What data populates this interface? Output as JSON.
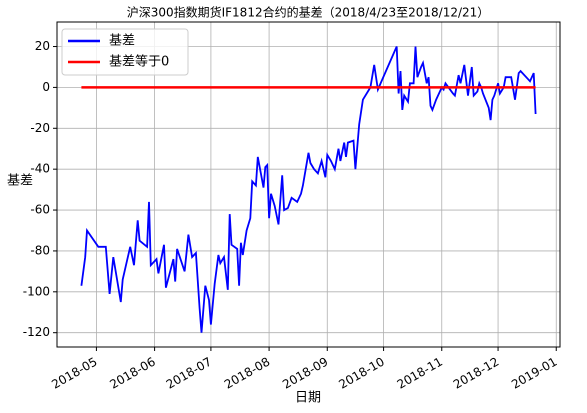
{
  "chart_data": {
    "type": "line",
    "title": "沪深300指数期货IF1812合约的基差（2018/4/23至2018/12/21）",
    "xlabel": "日期",
    "ylabel": "基差",
    "x": [
      "2018-04-23",
      "2018-04-25",
      "2018-04-26",
      "2018-05-02",
      "2018-05-06",
      "2018-05-08",
      "2018-05-10",
      "2018-05-14",
      "2018-05-15",
      "2018-05-19",
      "2018-05-21",
      "2018-05-23",
      "2018-05-24",
      "2018-05-28",
      "2018-05-29",
      "2018-05-30",
      "2018-06-02",
      "2018-06-03",
      "2018-06-06",
      "2018-06-07",
      "2018-06-11",
      "2018-06-12",
      "2018-06-13",
      "2018-06-17",
      "2018-06-19",
      "2018-06-21",
      "2018-06-23",
      "2018-06-25",
      "2018-06-26",
      "2018-06-28",
      "2018-06-30",
      "2018-07-01",
      "2018-07-03",
      "2018-07-05",
      "2018-07-06",
      "2018-07-08",
      "2018-07-10",
      "2018-07-11",
      "2018-07-12",
      "2018-07-15",
      "2018-07-16",
      "2018-07-17",
      "2018-07-18",
      "2018-07-20",
      "2018-07-22",
      "2018-07-23",
      "2018-07-25",
      "2018-07-26",
      "2018-07-29",
      "2018-07-30",
      "2018-07-31",
      "2018-08-01",
      "2018-08-02",
      "2018-08-04",
      "2018-08-06",
      "2018-08-08",
      "2018-08-09",
      "2018-08-11",
      "2018-08-13",
      "2018-08-16",
      "2018-08-18",
      "2018-08-19",
      "2018-08-22",
      "2018-08-23",
      "2018-08-25",
      "2018-08-27",
      "2018-08-29",
      "2018-08-31",
      "2018-09-01",
      "2018-09-03",
      "2018-09-05",
      "2018-09-07",
      "2018-09-08",
      "2018-09-10",
      "2018-09-11",
      "2018-09-12",
      "2018-09-15",
      "2018-09-16",
      "2018-09-18",
      "2018-09-20",
      "2018-09-24",
      "2018-09-26",
      "2018-09-28",
      "2018-10-08",
      "2018-10-09",
      "2018-10-10",
      "2018-10-11",
      "2018-10-12",
      "2018-10-14",
      "2018-10-15",
      "2018-10-17",
      "2018-10-18",
      "2018-10-19",
      "2018-10-21",
      "2018-10-22",
      "2018-10-24",
      "2018-10-25",
      "2018-10-26",
      "2018-10-27",
      "2018-10-29",
      "2018-11-01",
      "2018-11-02",
      "2018-11-03",
      "2018-11-07",
      "2018-11-08",
      "2018-11-10",
      "2018-11-11",
      "2018-11-13",
      "2018-11-15",
      "2018-11-17",
      "2018-11-18",
      "2018-11-20",
      "2018-11-21",
      "2018-11-22",
      "2018-11-23",
      "2018-11-26",
      "2018-11-27",
      "2018-11-28",
      "2018-11-29",
      "2018-12-01",
      "2018-12-02",
      "2018-12-04",
      "2018-12-05",
      "2018-12-08",
      "2018-12-10",
      "2018-12-12",
      "2018-12-13",
      "2018-12-17",
      "2018-12-18",
      "2018-12-20",
      "2018-12-21"
    ],
    "series": [
      {
        "name": "基差",
        "color": "#0000ff",
        "values": [
          -97,
          -83,
          -70,
          -78,
          -78,
          -101,
          -83,
          -105,
          -94,
          -78,
          -87,
          -65,
          -75,
          -78,
          -56,
          -87,
          -84,
          -91,
          -77,
          -98,
          -84,
          -95,
          -79,
          -90,
          -72,
          -83,
          -81,
          -108,
          -120,
          -97,
          -104,
          -116,
          -96,
          -82,
          -86,
          -83,
          -99,
          -62,
          -77,
          -79,
          -97,
          -76,
          -82,
          -70,
          -64,
          -46,
          -48,
          -34,
          -49,
          -39,
          -38,
          -64,
          -52,
          -58,
          -67,
          -43,
          -60,
          -59,
          -54,
          -56,
          -52,
          -48,
          -32,
          -37,
          -40,
          -42,
          -36,
          -44,
          -33,
          -36,
          -40,
          -30,
          -36,
          -27,
          -34,
          -27,
          -26,
          -40,
          -18,
          -6,
          0,
          11,
          -1,
          20,
          -3,
          8,
          -11,
          -4,
          -7,
          2,
          2,
          20,
          5,
          10,
          12,
          2,
          5,
          -9,
          -11,
          -6,
          0,
          -1,
          2,
          -3,
          -4,
          6,
          2,
          11,
          -4,
          10,
          -4,
          -2,
          2,
          0,
          -3,
          -10,
          -16,
          -6,
          -4,
          2,
          -3,
          0,
          5,
          5,
          -6,
          7,
          8,
          4,
          3,
          7,
          -13
        ]
      },
      {
        "name": "基差等于0",
        "color": "#ff0000",
        "x": [
          "2018-04-23",
          "2018-12-21"
        ],
        "values": [
          0,
          0
        ]
      }
    ],
    "xlim": [
      "2018-04-10",
      "2019-01-03"
    ],
    "xticks": [
      {
        "value": "2018-05-01",
        "label": "2018-05"
      },
      {
        "value": "2018-06-01",
        "label": "2018-06"
      },
      {
        "value": "2018-07-01",
        "label": "2018-07"
      },
      {
        "value": "2018-08-01",
        "label": "2018-08"
      },
      {
        "value": "2018-09-01",
        "label": "2018-09"
      },
      {
        "value": "2018-10-01",
        "label": "2018-10"
      },
      {
        "value": "2018-11-01",
        "label": "2018-11"
      },
      {
        "value": "2018-12-01",
        "label": "2018-12"
      },
      {
        "value": "2019-01-01",
        "label": "2019-01"
      }
    ],
    "ylim": [
      -127,
      32
    ],
    "yticks": [
      20,
      0,
      -20,
      -40,
      -60,
      -80,
      -100,
      -120
    ],
    "grid": true,
    "legend": "upper left"
  }
}
